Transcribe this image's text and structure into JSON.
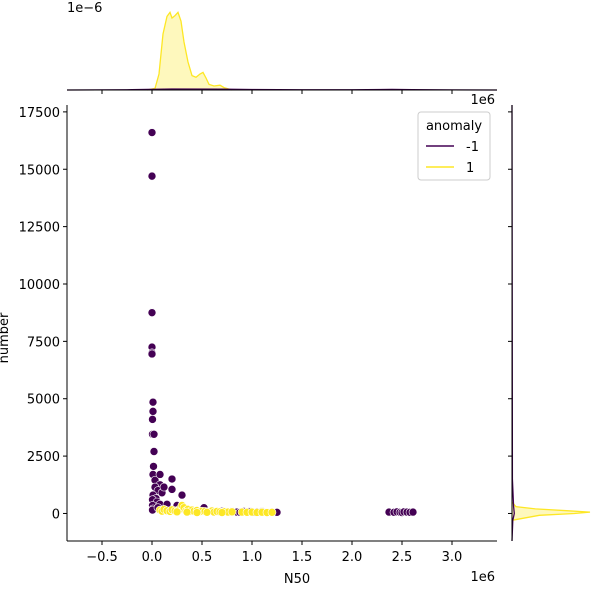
{
  "chart_data": {
    "type": "scatter",
    "xlabel": "N50",
    "ylabel": "number",
    "x_offset_label": "1e6",
    "y_offset_label_right": "1e6",
    "top_marginal_offset_label": "1e−6",
    "xlim": [
      -850000,
      3450000
    ],
    "ylim": [
      -1200,
      17800
    ],
    "x_ticks": [
      -500000,
      0,
      500000,
      1000000,
      1500000,
      2000000,
      2500000,
      3000000
    ],
    "x_tick_labels": [
      "−0.5",
      "0.0",
      "0.5",
      "1.0",
      "1.5",
      "2.0",
      "2.5",
      "3.0"
    ],
    "y_ticks": [
      0,
      2500,
      5000,
      7500,
      10000,
      12500,
      15000,
      17500
    ],
    "y_tick_labels": [
      "0",
      "2500",
      "5000",
      "7500",
      "10000",
      "12500",
      "15000",
      "17500"
    ],
    "legend": {
      "title": "anomaly",
      "placement": "top-right",
      "entries": [
        {
          "label": "-1",
          "color": "#440154"
        },
        {
          "label": "1",
          "color": "#fde725"
        }
      ]
    },
    "series": [
      {
        "name": "-1",
        "color": "#440154",
        "points": [
          [
            0,
            16600
          ],
          [
            0,
            14700
          ],
          [
            0,
            8750
          ],
          [
            0,
            7250
          ],
          [
            0,
            7000
          ],
          [
            0,
            6950
          ],
          [
            10000,
            4850
          ],
          [
            10000,
            4450
          ],
          [
            5000,
            4100
          ],
          [
            5000,
            3450
          ],
          [
            20000,
            3450
          ],
          [
            20000,
            2700
          ],
          [
            15000,
            2050
          ],
          [
            10000,
            1700
          ],
          [
            30000,
            1450
          ],
          [
            80000,
            1700
          ],
          [
            200000,
            1500
          ],
          [
            80000,
            1250
          ],
          [
            30000,
            1150
          ],
          [
            60000,
            1000
          ],
          [
            100000,
            900
          ],
          [
            120000,
            1150
          ],
          [
            200000,
            1050
          ],
          [
            300000,
            800
          ],
          [
            10000,
            800
          ],
          [
            40000,
            650
          ],
          [
            5000,
            600
          ],
          [
            50000,
            500
          ],
          [
            80000,
            400
          ],
          [
            150000,
            400
          ],
          [
            250000,
            350
          ],
          [
            5000,
            350
          ],
          [
            10000,
            200
          ],
          [
            5000,
            150
          ],
          [
            60000,
            250
          ],
          [
            100000,
            150
          ],
          [
            300000,
            200
          ],
          [
            400000,
            150
          ],
          [
            500000,
            100
          ],
          [
            520000,
            250
          ],
          [
            600000,
            120
          ],
          [
            650000,
            80
          ],
          [
            700000,
            100
          ],
          [
            750000,
            70
          ],
          [
            800000,
            80
          ],
          [
            850000,
            60
          ],
          [
            880000,
            50
          ],
          [
            920000,
            90
          ],
          [
            950000,
            60
          ],
          [
            980000,
            80
          ],
          [
            1020000,
            50
          ],
          [
            1050000,
            70
          ],
          [
            1080000,
            60
          ],
          [
            1100000,
            80
          ],
          [
            1150000,
            40
          ],
          [
            1200000,
            60
          ],
          [
            1250000,
            50
          ],
          [
            2370000,
            60
          ],
          [
            2420000,
            50
          ],
          [
            2450000,
            70
          ],
          [
            2480000,
            50
          ],
          [
            2500000,
            40
          ],
          [
            2520000,
            70
          ],
          [
            2550000,
            60
          ],
          [
            2580000,
            50
          ],
          [
            2610000,
            60
          ]
        ]
      },
      {
        "name": "1",
        "color": "#fde725",
        "points": [
          [
            80000,
            150
          ],
          [
            100000,
            100
          ],
          [
            120000,
            180
          ],
          [
            150000,
            120
          ],
          [
            180000,
            90
          ],
          [
            200000,
            160
          ],
          [
            230000,
            110
          ],
          [
            260000,
            140
          ],
          [
            280000,
            200
          ],
          [
            300000,
            350
          ],
          [
            320000,
            250
          ],
          [
            340000,
            120
          ],
          [
            360000,
            180
          ],
          [
            380000,
            90
          ],
          [
            400000,
            150
          ],
          [
            420000,
            100
          ],
          [
            450000,
            130
          ],
          [
            480000,
            80
          ],
          [
            500000,
            100
          ],
          [
            530000,
            90
          ],
          [
            560000,
            70
          ],
          [
            600000,
            110
          ],
          [
            620000,
            60
          ],
          [
            650000,
            90
          ],
          [
            680000,
            70
          ],
          [
            720000,
            80
          ],
          [
            760000,
            60
          ],
          [
            800000,
            70
          ],
          [
            900000,
            60
          ],
          [
            950000,
            50
          ],
          [
            1000000,
            60
          ],
          [
            1050000,
            45
          ],
          [
            1100000,
            55
          ],
          [
            1150000,
            40
          ],
          [
            1200000,
            50
          ],
          [
            250000,
            70
          ],
          [
            350000,
            60
          ],
          [
            450000,
            40
          ],
          [
            550000,
            50
          ],
          [
            700000,
            40
          ]
        ]
      }
    ],
    "marginal_x_density": {
      "series": [
        {
          "name": "1",
          "color": "#fde725",
          "points": [
            [
              -50000,
              0
            ],
            [
              30000,
              0.02
            ],
            [
              70000,
              0.2
            ],
            [
              110000,
              0.7
            ],
            [
              150000,
              0.92
            ],
            [
              180000,
              0.97
            ],
            [
              200000,
              0.9
            ],
            [
              230000,
              0.93
            ],
            [
              260000,
              0.97
            ],
            [
              290000,
              0.86
            ],
            [
              320000,
              0.6
            ],
            [
              360000,
              0.35
            ],
            [
              400000,
              0.18
            ],
            [
              440000,
              0.16
            ],
            [
              480000,
              0.2
            ],
            [
              510000,
              0.22
            ],
            [
              540000,
              0.15
            ],
            [
              570000,
              0.07
            ],
            [
              620000,
              0.05
            ],
            [
              680000,
              0.06
            ],
            [
              720000,
              0.03
            ],
            [
              800000,
              0.0
            ]
          ]
        },
        {
          "name": "-1",
          "color": "#440154",
          "points": [
            [
              -850000,
              0
            ],
            [
              -200000,
              0.004
            ],
            [
              200000,
              0.012
            ],
            [
              700000,
              0.01
            ],
            [
              1000000,
              0.006
            ],
            [
              1500000,
              0.002
            ],
            [
              2000000,
              0.002
            ],
            [
              2400000,
              0.007
            ],
            [
              2600000,
              0.005
            ],
            [
              3000000,
              0.001
            ],
            [
              3450000,
              0.0
            ]
          ]
        }
      ]
    },
    "marginal_y_density": {
      "series": [
        {
          "name": "1",
          "color": "#fde725",
          "points": [
            [
              -300,
              0
            ],
            [
              -80,
              0.35
            ],
            [
              0,
              0.8
            ],
            [
              60,
              1.0
            ],
            [
              120,
              0.7
            ],
            [
              200,
              0.3
            ],
            [
              300,
              0.05
            ],
            [
              500,
              0
            ]
          ]
        },
        {
          "name": "-1",
          "color": "#440154",
          "points": [
            [
              -1200,
              0
            ],
            [
              -300,
              0.01
            ],
            [
              0,
              0.03
            ],
            [
              300,
              0.02
            ],
            [
              1500,
              0.005
            ],
            [
              17800,
              0
            ]
          ]
        }
      ]
    }
  }
}
